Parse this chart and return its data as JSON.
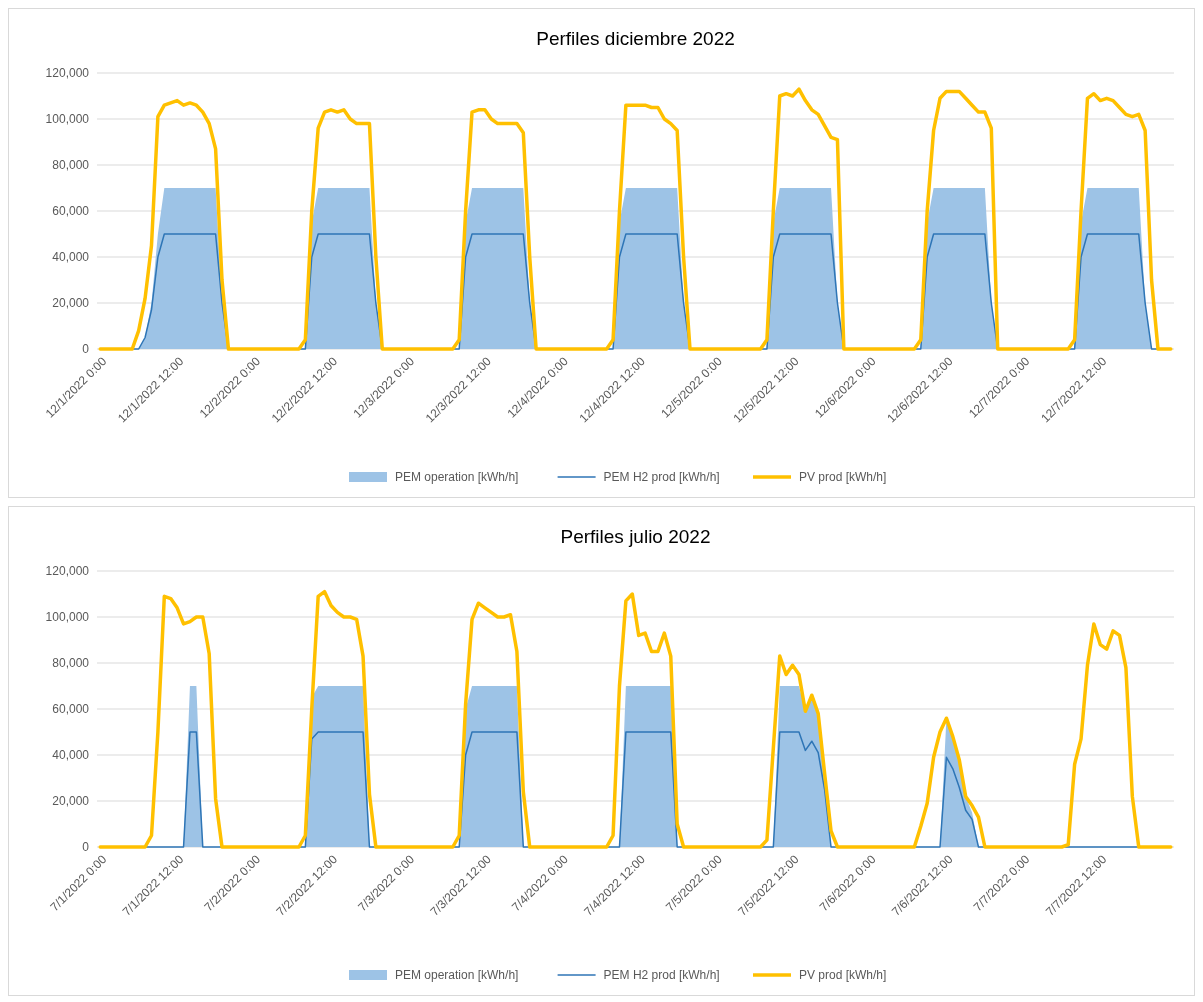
{
  "chart_data": [
    {
      "type": "line",
      "title": "Perfiles diciembre 2022",
      "xlim": [
        "2022-11-30T23:30",
        "2022-12-07T23:30"
      ],
      "xticks": [
        {
          "value": "2022-12-01T00:00",
          "label": "12/1/2022 0:00"
        },
        {
          "value": "2022-12-01T12:00",
          "label": "12/1/2022 12:00"
        },
        {
          "value": "2022-12-02T00:00",
          "label": "12/2/2022 0:00"
        },
        {
          "value": "2022-12-02T12:00",
          "label": "12/2/2022 12:00"
        },
        {
          "value": "2022-12-03T00:00",
          "label": "12/3/2022 0:00"
        },
        {
          "value": "2022-12-03T12:00",
          "label": "12/3/2022 12:00"
        },
        {
          "value": "2022-12-04T00:00",
          "label": "12/4/2022 0:00"
        },
        {
          "value": "2022-12-04T12:00",
          "label": "12/4/2022 12:00"
        },
        {
          "value": "2022-12-05T00:00",
          "label": "12/5/2022 0:00"
        },
        {
          "value": "2022-12-05T12:00",
          "label": "12/5/2022 12:00"
        },
        {
          "value": "2022-12-06T00:00",
          "label": "12/6/2022 0:00"
        },
        {
          "value": "2022-12-06T12:00",
          "label": "12/6/2022 12:00"
        },
        {
          "value": "2022-12-07T00:00",
          "label": "12/7/2022 0:00"
        },
        {
          "value": "2022-12-07T12:00",
          "label": "12/7/2022 12:00"
        }
      ],
      "ylim": [
        0,
        120000
      ],
      "yticks": [
        {
          "value": 0,
          "label": "0"
        },
        {
          "value": 20000,
          "label": "20,000"
        },
        {
          "value": 40000,
          "label": "40,000"
        },
        {
          "value": 60000,
          "label": "60,000"
        },
        {
          "value": 80000,
          "label": "80,000"
        },
        {
          "value": 100000,
          "label": "100,000"
        },
        {
          "value": 120000,
          "label": "120,000"
        }
      ],
      "grid": "y",
      "legend": "bottom",
      "series": [
        {
          "name": "PEM operation [kWh/h]",
          "type": "area",
          "color": "#9dc3e6",
          "x": [
            "2022-12-01T00:00",
            "2022-12-01T06:00",
            "2022-12-01T07:00",
            "2022-12-01T08:00",
            "2022-12-01T09:00",
            "2022-12-01T10:00",
            "2022-12-01T18:00",
            "2022-12-01T19:00",
            "2022-12-01T20:00",
            "2022-12-02T08:00",
            "2022-12-02T09:00",
            "2022-12-02T10:00",
            "2022-12-02T18:00",
            "2022-12-02T19:00",
            "2022-12-02T20:00",
            "2022-12-03T08:00",
            "2022-12-03T09:00",
            "2022-12-03T10:00",
            "2022-12-03T18:00",
            "2022-12-03T19:00",
            "2022-12-03T20:00",
            "2022-12-04T08:00",
            "2022-12-04T09:00",
            "2022-12-04T10:00",
            "2022-12-04T18:00",
            "2022-12-04T19:00",
            "2022-12-04T20:00",
            "2022-12-05T08:00",
            "2022-12-05T09:00",
            "2022-12-05T10:00",
            "2022-12-05T18:00",
            "2022-12-05T19:00",
            "2022-12-05T20:00",
            "2022-12-06T08:00",
            "2022-12-06T09:00",
            "2022-12-06T10:00",
            "2022-12-06T18:00",
            "2022-12-06T19:00",
            "2022-12-06T20:00",
            "2022-12-07T08:00",
            "2022-12-07T09:00",
            "2022-12-07T10:00",
            "2022-12-07T18:00",
            "2022-12-07T19:00",
            "2022-12-07T20:00",
            "2022-12-07T23:00"
          ],
          "values": [
            0,
            0,
            5000,
            20000,
            50000,
            70000,
            70000,
            20000,
            0,
            0,
            55000,
            70000,
            70000,
            20000,
            0,
            0,
            55000,
            70000,
            70000,
            20000,
            0,
            0,
            55000,
            70000,
            70000,
            20000,
            0,
            0,
            55000,
            70000,
            70000,
            20000,
            0,
            0,
            55000,
            70000,
            70000,
            20000,
            0,
            0,
            55000,
            70000,
            70000,
            20000,
            0,
            0
          ]
        },
        {
          "name": "PEM H2 prod [kWh/h]",
          "type": "line",
          "color": "#2e75b6",
          "x": [
            "2022-12-01T00:00",
            "2022-12-01T06:00",
            "2022-12-01T07:00",
            "2022-12-01T08:00",
            "2022-12-01T09:00",
            "2022-12-01T10:00",
            "2022-12-01T18:00",
            "2022-12-01T19:00",
            "2022-12-01T20:00",
            "2022-12-02T08:00",
            "2022-12-02T09:00",
            "2022-12-02T10:00",
            "2022-12-02T18:00",
            "2022-12-02T19:00",
            "2022-12-02T20:00",
            "2022-12-03T08:00",
            "2022-12-03T09:00",
            "2022-12-03T10:00",
            "2022-12-03T18:00",
            "2022-12-03T19:00",
            "2022-12-03T20:00",
            "2022-12-04T08:00",
            "2022-12-04T09:00",
            "2022-12-04T10:00",
            "2022-12-04T18:00",
            "2022-12-04T19:00",
            "2022-12-04T20:00",
            "2022-12-05T08:00",
            "2022-12-05T09:00",
            "2022-12-05T10:00",
            "2022-12-05T18:00",
            "2022-12-05T19:00",
            "2022-12-05T20:00",
            "2022-12-06T08:00",
            "2022-12-06T09:00",
            "2022-12-06T10:00",
            "2022-12-06T18:00",
            "2022-12-06T19:00",
            "2022-12-06T20:00",
            "2022-12-07T08:00",
            "2022-12-07T09:00",
            "2022-12-07T10:00",
            "2022-12-07T18:00",
            "2022-12-07T19:00",
            "2022-12-07T20:00",
            "2022-12-07T23:00"
          ],
          "values": [
            0,
            0,
            5000,
            17000,
            40000,
            50000,
            50000,
            20000,
            0,
            0,
            40000,
            50000,
            50000,
            20000,
            0,
            0,
            40000,
            50000,
            50000,
            20000,
            0,
            0,
            40000,
            50000,
            50000,
            20000,
            0,
            0,
            40000,
            50000,
            50000,
            20000,
            0,
            0,
            40000,
            50000,
            50000,
            20000,
            0,
            0,
            40000,
            50000,
            50000,
            20000,
            0,
            0
          ]
        },
        {
          "name": "PV prod [kWh/h]",
          "type": "line",
          "color": "#ffc000",
          "x": [
            "2022-12-01T00:00",
            "2022-12-01T05:00",
            "2022-12-01T06:00",
            "2022-12-01T07:00",
            "2022-12-01T08:00",
            "2022-12-01T09:00",
            "2022-12-01T10:00",
            "2022-12-01T11:00",
            "2022-12-01T12:00",
            "2022-12-01T13:00",
            "2022-12-01T14:00",
            "2022-12-01T15:00",
            "2022-12-01T16:00",
            "2022-12-01T17:00",
            "2022-12-01T18:00",
            "2022-12-01T19:00",
            "2022-12-01T20:00",
            "2022-12-02T07:00",
            "2022-12-02T08:00",
            "2022-12-02T09:00",
            "2022-12-02T10:00",
            "2022-12-02T11:00",
            "2022-12-02T12:00",
            "2022-12-02T13:00",
            "2022-12-02T14:00",
            "2022-12-02T15:00",
            "2022-12-02T16:00",
            "2022-12-02T17:00",
            "2022-12-02T18:00",
            "2022-12-02T19:00",
            "2022-12-02T20:00",
            "2022-12-03T07:00",
            "2022-12-03T08:00",
            "2022-12-03T09:00",
            "2022-12-03T10:00",
            "2022-12-03T11:00",
            "2022-12-03T12:00",
            "2022-12-03T13:00",
            "2022-12-03T14:00",
            "2022-12-03T15:00",
            "2022-12-03T16:00",
            "2022-12-03T17:00",
            "2022-12-03T18:00",
            "2022-12-03T19:00",
            "2022-12-03T20:00",
            "2022-12-04T07:00",
            "2022-12-04T08:00",
            "2022-12-04T09:00",
            "2022-12-04T10:00",
            "2022-12-04T11:00",
            "2022-12-04T12:00",
            "2022-12-04T13:00",
            "2022-12-04T14:00",
            "2022-12-04T15:00",
            "2022-12-04T16:00",
            "2022-12-04T17:00",
            "2022-12-04T18:00",
            "2022-12-04T19:00",
            "2022-12-04T20:00",
            "2022-12-05T07:00",
            "2022-12-05T08:00",
            "2022-12-05T09:00",
            "2022-12-05T10:00",
            "2022-12-05T11:00",
            "2022-12-05T12:00",
            "2022-12-05T13:00",
            "2022-12-05T14:00",
            "2022-12-05T15:00",
            "2022-12-05T16:00",
            "2022-12-05T17:00",
            "2022-12-05T18:00",
            "2022-12-05T19:00",
            "2022-12-05T20:00",
            "2022-12-06T07:00",
            "2022-12-06T08:00",
            "2022-12-06T09:00",
            "2022-12-06T10:00",
            "2022-12-06T11:00",
            "2022-12-06T12:00",
            "2022-12-06T13:00",
            "2022-12-06T14:00",
            "2022-12-06T15:00",
            "2022-12-06T16:00",
            "2022-12-06T17:00",
            "2022-12-06T18:00",
            "2022-12-06T19:00",
            "2022-12-06T20:00",
            "2022-12-07T07:00",
            "2022-12-07T08:00",
            "2022-12-07T09:00",
            "2022-12-07T10:00",
            "2022-12-07T11:00",
            "2022-12-07T12:00",
            "2022-12-07T13:00",
            "2022-12-07T14:00",
            "2022-12-07T15:00",
            "2022-12-07T16:00",
            "2022-12-07T17:00",
            "2022-12-07T18:00",
            "2022-12-07T19:00",
            "2022-12-07T20:00",
            "2022-12-07T21:00",
            "2022-12-07T23:00"
          ],
          "values": [
            0,
            0,
            8000,
            22000,
            45000,
            101000,
            106000,
            107000,
            108000,
            106000,
            107000,
            106000,
            103000,
            98000,
            87000,
            30000,
            0,
            0,
            4000,
            60000,
            96000,
            103000,
            104000,
            103000,
            104000,
            100000,
            98000,
            98000,
            98000,
            40000,
            0,
            0,
            4000,
            60000,
            103000,
            104000,
            104000,
            100000,
            98000,
            98000,
            98000,
            98000,
            94000,
            40000,
            0,
            0,
            4000,
            60000,
            106000,
            106000,
            106000,
            106000,
            105000,
            105000,
            100000,
            98000,
            95000,
            40000,
            0,
            0,
            4000,
            60000,
            110000,
            111000,
            110000,
            113000,
            108000,
            104000,
            102000,
            97000,
            92000,
            91000,
            0,
            0,
            4000,
            60000,
            95000,
            109000,
            112000,
            112000,
            112000,
            109000,
            106000,
            103000,
            103000,
            96000,
            0,
            0,
            4000,
            60000,
            109000,
            111000,
            108000,
            109000,
            108000,
            105000,
            102000,
            101000,
            102000,
            95000,
            30000,
            0,
            0
          ]
        }
      ]
    },
    {
      "type": "line",
      "title": "Perfiles julio 2022",
      "xlim": [
        "2022-06-30T23:30",
        "2022-07-07T23:30"
      ],
      "xticks": [
        {
          "value": "2022-07-01T00:00",
          "label": "7/1/2022 0:00"
        },
        {
          "value": "2022-07-01T12:00",
          "label": "7/1/2022 12:00"
        },
        {
          "value": "2022-07-02T00:00",
          "label": "7/2/2022 0:00"
        },
        {
          "value": "2022-07-02T12:00",
          "label": "7/2/2022 12:00"
        },
        {
          "value": "2022-07-03T00:00",
          "label": "7/3/2022 0:00"
        },
        {
          "value": "2022-07-03T12:00",
          "label": "7/3/2022 12:00"
        },
        {
          "value": "2022-07-04T00:00",
          "label": "7/4/2022 0:00"
        },
        {
          "value": "2022-07-04T12:00",
          "label": "7/4/2022 12:00"
        },
        {
          "value": "2022-07-05T00:00",
          "label": "7/5/2022 0:00"
        },
        {
          "value": "2022-07-05T12:00",
          "label": "7/5/2022 12:00"
        },
        {
          "value": "2022-07-06T00:00",
          "label": "7/6/2022 0:00"
        },
        {
          "value": "2022-07-06T12:00",
          "label": "7/6/2022 12:00"
        },
        {
          "value": "2022-07-07T00:00",
          "label": "7/7/2022 0:00"
        },
        {
          "value": "2022-07-07T12:00",
          "label": "7/7/2022 12:00"
        }
      ],
      "ylim": [
        0,
        120000
      ],
      "yticks": [
        {
          "value": 0,
          "label": "0"
        },
        {
          "value": 20000,
          "label": "20,000"
        },
        {
          "value": 40000,
          "label": "40,000"
        },
        {
          "value": 60000,
          "label": "60,000"
        },
        {
          "value": 80000,
          "label": "80,000"
        },
        {
          "value": 100000,
          "label": "100,000"
        },
        {
          "value": 120000,
          "label": "120,000"
        }
      ],
      "grid": "y",
      "legend": "bottom",
      "series": [
        {
          "name": "PEM operation [kWh/h]",
          "type": "area",
          "color": "#9dc3e6",
          "x": [
            "2022-07-01T00:00",
            "2022-07-01T13:00",
            "2022-07-01T14:00",
            "2022-07-01T15:00",
            "2022-07-01T16:00",
            "2022-07-02T08:00",
            "2022-07-02T09:00",
            "2022-07-02T10:00",
            "2022-07-02T17:00",
            "2022-07-02T18:00",
            "2022-07-03T08:00",
            "2022-07-03T09:00",
            "2022-07-03T10:00",
            "2022-07-03T17:00",
            "2022-07-03T18:00",
            "2022-07-04T09:00",
            "2022-07-04T10:00",
            "2022-07-04T17:00",
            "2022-07-04T18:00",
            "2022-07-05T09:00",
            "2022-07-05T10:00",
            "2022-07-05T13:00",
            "2022-07-05T14:00",
            "2022-07-05T15:00",
            "2022-07-05T16:00",
            "2022-07-05T17:00",
            "2022-07-05T18:00",
            "2022-07-06T11:00",
            "2022-07-06T12:00",
            "2022-07-06T13:00",
            "2022-07-06T14:00",
            "2022-07-06T15:00",
            "2022-07-06T16:00",
            "2022-07-06T17:00",
            "2022-07-07T23:00"
          ],
          "values": [
            0,
            0,
            70000,
            70000,
            0,
            0,
            65000,
            70000,
            70000,
            0,
            0,
            60000,
            70000,
            70000,
            0,
            0,
            70000,
            70000,
            0,
            0,
            70000,
            70000,
            59000,
            66000,
            58000,
            32000,
            0,
            0,
            56000,
            48000,
            38000,
            22000,
            15000,
            0,
            0
          ]
        },
        {
          "name": "PEM H2 prod [kWh/h]",
          "type": "line",
          "color": "#2e75b6",
          "x": [
            "2022-07-01T00:00",
            "2022-07-01T13:00",
            "2022-07-01T14:00",
            "2022-07-01T15:00",
            "2022-07-01T16:00",
            "2022-07-02T08:00",
            "2022-07-02T09:00",
            "2022-07-02T10:00",
            "2022-07-02T17:00",
            "2022-07-02T18:00",
            "2022-07-03T08:00",
            "2022-07-03T09:00",
            "2022-07-03T10:00",
            "2022-07-03T17:00",
            "2022-07-03T18:00",
            "2022-07-04T09:00",
            "2022-07-04T10:00",
            "2022-07-04T17:00",
            "2022-07-04T18:00",
            "2022-07-05T09:00",
            "2022-07-05T10:00",
            "2022-07-05T13:00",
            "2022-07-05T14:00",
            "2022-07-05T15:00",
            "2022-07-05T16:00",
            "2022-07-05T17:00",
            "2022-07-05T18:00",
            "2022-07-06T11:00",
            "2022-07-06T12:00",
            "2022-07-06T13:00",
            "2022-07-06T14:00",
            "2022-07-06T15:00",
            "2022-07-06T16:00",
            "2022-07-06T17:00",
            "2022-07-07T23:00"
          ],
          "values": [
            0,
            0,
            50000,
            50000,
            0,
            0,
            47000,
            50000,
            50000,
            0,
            0,
            40000,
            50000,
            50000,
            0,
            0,
            50000,
            50000,
            0,
            0,
            50000,
            50000,
            42000,
            46000,
            41000,
            25000,
            0,
            0,
            39000,
            34000,
            26000,
            16000,
            12000,
            0,
            0
          ]
        },
        {
          "name": "PV prod [kWh/h]",
          "type": "line",
          "color": "#ffc000",
          "x": [
            "2022-07-01T00:00",
            "2022-07-01T07:00",
            "2022-07-01T08:00",
            "2022-07-01T09:00",
            "2022-07-01T10:00",
            "2022-07-01T11:00",
            "2022-07-01T12:00",
            "2022-07-01T13:00",
            "2022-07-01T14:00",
            "2022-07-01T15:00",
            "2022-07-01T16:00",
            "2022-07-01T17:00",
            "2022-07-01T18:00",
            "2022-07-01T19:00",
            "2022-07-02T07:00",
            "2022-07-02T08:00",
            "2022-07-02T09:00",
            "2022-07-02T10:00",
            "2022-07-02T11:00",
            "2022-07-02T12:00",
            "2022-07-02T13:00",
            "2022-07-02T14:00",
            "2022-07-02T15:00",
            "2022-07-02T16:00",
            "2022-07-02T17:00",
            "2022-07-02T18:00",
            "2022-07-02T19:00",
            "2022-07-03T07:00",
            "2022-07-03T08:00",
            "2022-07-03T09:00",
            "2022-07-03T10:00",
            "2022-07-03T11:00",
            "2022-07-03T12:00",
            "2022-07-03T13:00",
            "2022-07-03T14:00",
            "2022-07-03T15:00",
            "2022-07-03T16:00",
            "2022-07-03T17:00",
            "2022-07-03T18:00",
            "2022-07-03T19:00",
            "2022-07-04T07:00",
            "2022-07-04T08:00",
            "2022-07-04T09:00",
            "2022-07-04T10:00",
            "2022-07-04T11:00",
            "2022-07-04T12:00",
            "2022-07-04T13:00",
            "2022-07-04T14:00",
            "2022-07-04T15:00",
            "2022-07-04T16:00",
            "2022-07-04T17:00",
            "2022-07-04T18:00",
            "2022-07-04T19:00",
            "2022-07-05T07:00",
            "2022-07-05T08:00",
            "2022-07-05T10:00",
            "2022-07-05T11:00",
            "2022-07-05T12:00",
            "2022-07-05T13:00",
            "2022-07-05T14:00",
            "2022-07-05T15:00",
            "2022-07-05T16:00",
            "2022-07-05T17:00",
            "2022-07-05T18:00",
            "2022-07-05T19:00",
            "2022-07-06T07:00",
            "2022-07-06T08:00",
            "2022-07-06T09:00",
            "2022-07-06T10:00",
            "2022-07-06T11:00",
            "2022-07-06T12:00",
            "2022-07-06T13:00",
            "2022-07-06T14:00",
            "2022-07-06T15:00",
            "2022-07-06T16:00",
            "2022-07-06T17:00",
            "2022-07-06T18:00",
            "2022-07-07T06:00",
            "2022-07-07T07:00",
            "2022-07-07T08:00",
            "2022-07-07T09:00",
            "2022-07-07T10:00",
            "2022-07-07T11:00",
            "2022-07-07T12:00",
            "2022-07-07T13:00",
            "2022-07-07T14:00",
            "2022-07-07T15:00",
            "2022-07-07T16:00",
            "2022-07-07T17:00",
            "2022-07-07T18:00",
            "2022-07-07T23:00"
          ],
          "values": [
            0,
            0,
            5000,
            50000,
            109000,
            108000,
            104000,
            97000,
            98000,
            100000,
            100000,
            84000,
            21000,
            0,
            0,
            5000,
            60000,
            109000,
            111000,
            105000,
            102000,
            100000,
            100000,
            99000,
            83000,
            23000,
            0,
            0,
            5000,
            62000,
            99000,
            106000,
            104000,
            102000,
            100000,
            100000,
            101000,
            85000,
            24000,
            0,
            0,
            5000,
            70000,
            107000,
            110000,
            92000,
            93000,
            85000,
            85000,
            93000,
            83000,
            10000,
            0,
            0,
            3000,
            83000,
            75000,
            79000,
            75000,
            59000,
            66000,
            58000,
            32000,
            7000,
            0,
            0,
            9000,
            19000,
            39000,
            50000,
            56000,
            48000,
            38000,
            22000,
            18000,
            13000,
            0,
            0,
            1000,
            36000,
            47000,
            79000,
            97000,
            88000,
            86000,
            94000,
            92000,
            78000,
            22000,
            0,
            0
          ]
        }
      ]
    }
  ]
}
